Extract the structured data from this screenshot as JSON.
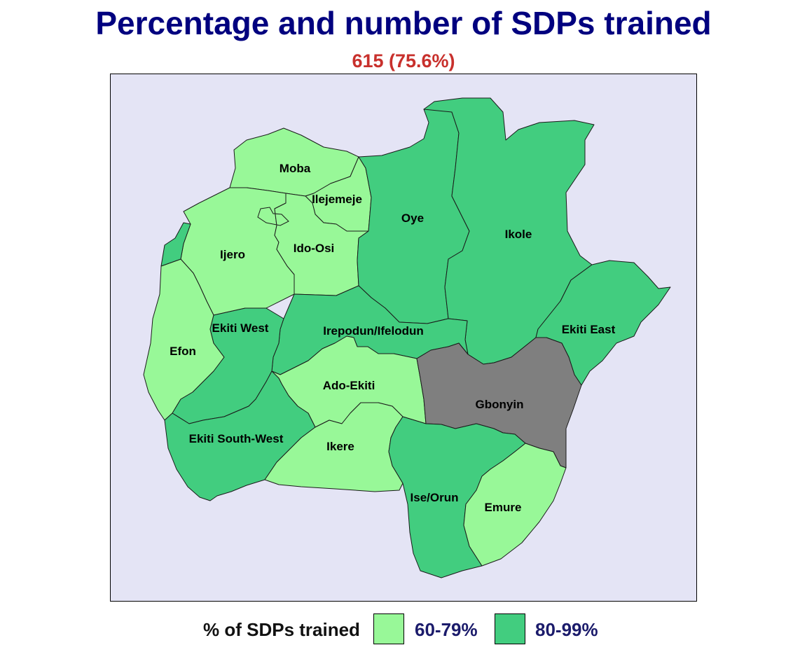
{
  "title": "Percentage and number of SDPs trained",
  "subtitle": "615 (75.6%)",
  "colors": {
    "light": "#98f898",
    "dark": "#42cd7f",
    "missing": "#7f7f7f",
    "background": "#e4e4f5",
    "title": "#00007f",
    "subtitle": "#c8302c"
  },
  "regions": [
    {
      "name": "Moba",
      "category": "60-79%"
    },
    {
      "name": "Ilejemeje",
      "category": "60-79%"
    },
    {
      "name": "Ijero",
      "category": "60-79%"
    },
    {
      "name": "Ido-Osi",
      "category": "60-79%"
    },
    {
      "name": "Efon",
      "category": "60-79%"
    },
    {
      "name": "Ado-Ekiti",
      "category": "60-79%"
    },
    {
      "name": "Ikere",
      "category": "60-79%"
    },
    {
      "name": "Emure",
      "category": "60-79%"
    },
    {
      "name": "Oye",
      "category": "80-99%"
    },
    {
      "name": "Ikole",
      "category": "80-99%"
    },
    {
      "name": "Ekiti East",
      "category": "80-99%"
    },
    {
      "name": "Irepodun/Ifelodun",
      "category": "80-99%"
    },
    {
      "name": "Ekiti West",
      "category": "80-99%"
    },
    {
      "name": "Ekiti South-West",
      "category": "80-99%"
    },
    {
      "name": "Ise/Orun",
      "category": "80-99%"
    },
    {
      "name": "Gbonyin",
      "category": "no data"
    }
  ],
  "legend": {
    "title": "% of SDPs trained",
    "items": [
      {
        "label": "60-79%",
        "color": "#98f898"
      },
      {
        "label": "80-99%",
        "color": "#42cd7f"
      }
    ]
  }
}
